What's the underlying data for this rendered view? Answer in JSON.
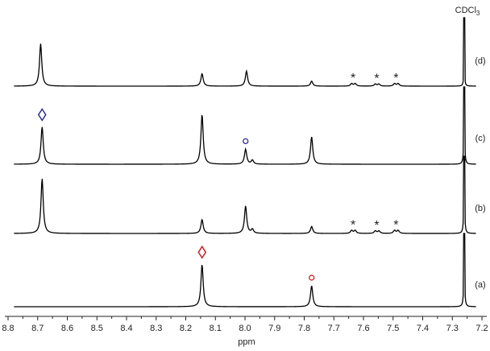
{
  "chart_data": {
    "type": "line",
    "title": "",
    "xlabel": "ppm",
    "ylabel": "",
    "xlim": [
      8.8,
      7.2
    ],
    "x_reversed": true,
    "grid": false,
    "xticks": [
      "8.8",
      "8.7",
      "8.6",
      "8.5",
      "8.4",
      "8.3",
      "8.2",
      "8.1",
      "8.0",
      "7.9",
      "7.8",
      "7.7",
      "7.6",
      "7.5",
      "7.4",
      "7.3",
      "7.2"
    ],
    "solvent_label": "CDCl3",
    "solvent_label_main": "CDCl",
    "solvent_label_sub": "3",
    "solvent_ppm": 7.26,
    "series": [
      {
        "name": "(d)",
        "peaks": [
          [
            8.69,
            0.85
          ],
          [
            8.145,
            0.25
          ],
          [
            7.995,
            0.3
          ],
          [
            7.775,
            0.1
          ],
          [
            7.64,
            0.05
          ],
          [
            7.628,
            0.05
          ],
          [
            7.56,
            0.04
          ],
          [
            7.548,
            0.04
          ],
          [
            7.495,
            0.05
          ],
          [
            7.483,
            0.05
          ],
          [
            7.26,
            0.45
          ]
        ]
      },
      {
        "name": "(c)",
        "peaks": [
          [
            8.685,
            0.75
          ],
          [
            8.145,
            1.0
          ],
          [
            7.998,
            0.3
          ],
          [
            7.975,
            0.08
          ],
          [
            7.775,
            0.55
          ],
          [
            7.26,
            1.0
          ]
        ]
      },
      {
        "name": "(b)",
        "peaks": [
          [
            8.685,
            1.1
          ],
          [
            8.145,
            0.28
          ],
          [
            7.998,
            0.55
          ],
          [
            7.975,
            0.08
          ],
          [
            7.775,
            0.14
          ],
          [
            7.64,
            0.06
          ],
          [
            7.628,
            0.06
          ],
          [
            7.56,
            0.05
          ],
          [
            7.548,
            0.05
          ],
          [
            7.495,
            0.06
          ],
          [
            7.483,
            0.06
          ],
          [
            7.26,
            1.0
          ]
        ]
      },
      {
        "name": "(a)",
        "peaks": [
          [
            8.145,
            0.85
          ],
          [
            7.775,
            0.42
          ],
          [
            7.26,
            1.0
          ]
        ]
      }
    ],
    "annotations": [
      {
        "type": "diamond",
        "trace": "(c)",
        "ppm": 8.685,
        "color": "#2e2e9a"
      },
      {
        "type": "circle",
        "trace": "(c)",
        "ppm": 7.998,
        "color": "#2e2e9a"
      },
      {
        "type": "diamond",
        "trace": "(a)",
        "ppm": 8.145,
        "color": "#d42020"
      },
      {
        "type": "circle",
        "trace": "(a)",
        "ppm": 7.775,
        "color": "#d42020"
      },
      {
        "type": "star",
        "trace": "(d)",
        "ppm": 7.635,
        "text": "*"
      },
      {
        "type": "star",
        "trace": "(d)",
        "ppm": 7.555,
        "text": "*"
      },
      {
        "type": "star",
        "trace": "(d)",
        "ppm": 7.49,
        "text": "*"
      },
      {
        "type": "star",
        "trace": "(b)",
        "ppm": 7.635,
        "text": "*"
      },
      {
        "type": "star",
        "trace": "(b)",
        "ppm": 7.555,
        "text": "*"
      },
      {
        "type": "star",
        "trace": "(b)",
        "ppm": 7.49,
        "text": "*"
      }
    ],
    "colors": {
      "trace": "#000000",
      "red_marker": "#d42020",
      "blue_marker": "#2e2e9a"
    }
  }
}
